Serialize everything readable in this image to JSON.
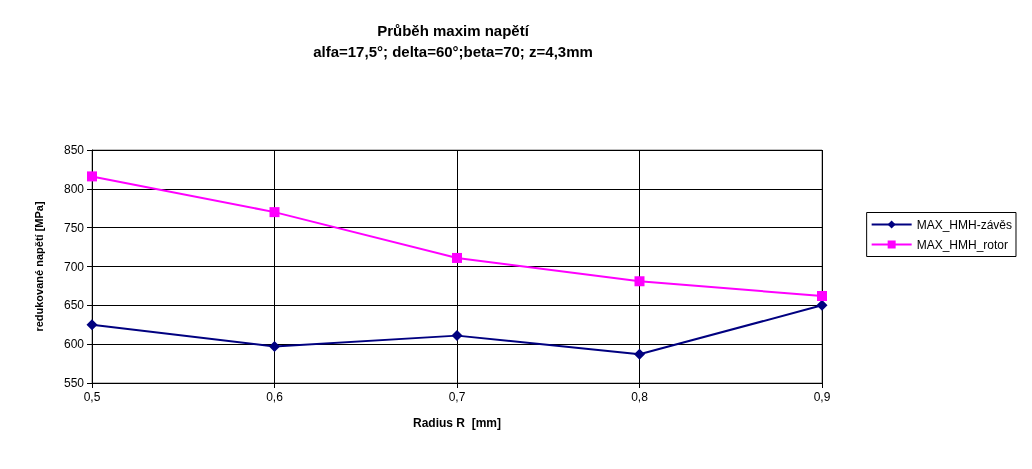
{
  "chart_data": {
    "type": "line",
    "title": "Průběh maxim napětí",
    "subtitle": "alfa=17,5°; delta=60°;beta=70; z=4,3mm",
    "xlabel": "Radius R  [mm]",
    "ylabel": "redukované napětí [MPa]",
    "categories": [
      "0,5",
      "0,6",
      "0,7",
      "0,8",
      "0,9"
    ],
    "series": [
      {
        "name": "MAX_HMH-závěs",
        "color": "#000080",
        "marker": "diamond",
        "values": [
          625,
          597,
          611,
          587,
          650
        ]
      },
      {
        "name": "MAX_HMH_rotor",
        "color": "#ff00ff",
        "marker": "square",
        "values": [
          816,
          770,
          711,
          681,
          662
        ]
      }
    ],
    "ylim": [
      550,
      850
    ],
    "yticks": [
      550,
      600,
      650,
      700,
      750,
      800,
      850
    ],
    "grid": true,
    "legend": "right",
    "line_style": "solid"
  }
}
